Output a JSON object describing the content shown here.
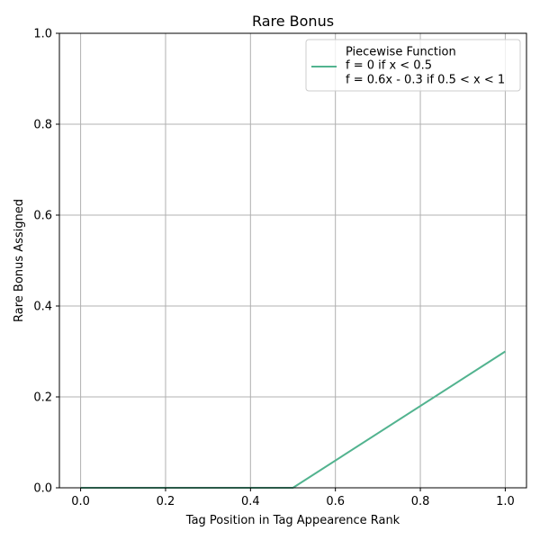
{
  "chart_data": {
    "type": "line",
    "title": "Rare Bonus",
    "xlabel": "Tag Position in Tag Appearence Rank",
    "ylabel": "Rare Bonus Assigned",
    "xlim": [
      -0.05,
      1.05
    ],
    "ylim": [
      0.0,
      1.0
    ],
    "x_ticks": [
      0.0,
      0.2,
      0.4,
      0.6,
      0.8,
      1.0
    ],
    "x_tick_labels": [
      "0.0",
      "0.2",
      "0.4",
      "0.6",
      "0.8",
      "1.0"
    ],
    "y_ticks": [
      0.0,
      0.2,
      0.4,
      0.6,
      0.8,
      1.0
    ],
    "y_tick_labels": [
      "0.0",
      "0.2",
      "0.4",
      "0.6",
      "0.8",
      "1.0"
    ],
    "grid": true,
    "legend_position": "top-right",
    "legend": {
      "lines": [
        "Piecewise Function",
        "f = 0 if x < 0.5",
        "f = 0.6x - 0.3 if 0.5 < x < 1"
      ]
    },
    "series": [
      {
        "name": "Piecewise Function",
        "color": "#52b38f",
        "x": [
          0.0,
          0.5,
          1.0
        ],
        "y": [
          0.0,
          0.0,
          0.3
        ]
      }
    ]
  }
}
